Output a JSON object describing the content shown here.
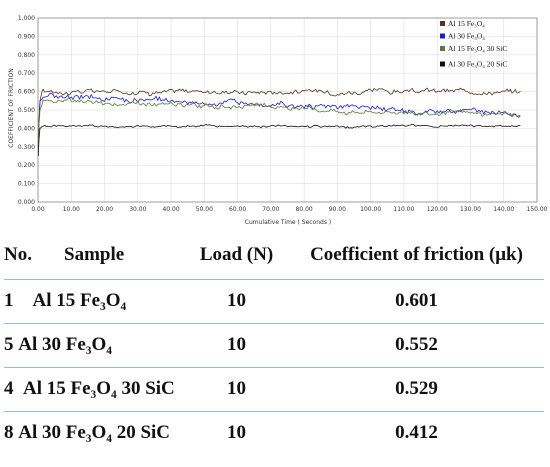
{
  "chart_data": {
    "type": "line",
    "xlabel": "Cumulative Time ( Seconds )",
    "ylabel": "COEFFICIENT OF FRICTION",
    "xlim": [
      0,
      150
    ],
    "ylim": [
      0,
      1
    ],
    "xticks": [
      "0.00",
      "10.00",
      "20.00",
      "30.00",
      "40.00",
      "50.00",
      "60.00",
      "70.00",
      "80.00",
      "90.00",
      "100.00",
      "110.00",
      "120.00",
      "130.00",
      "140.00",
      "150.00"
    ],
    "yticks": [
      "0.000",
      "0.100",
      "0.200",
      "0.300",
      "0.400",
      "0.500",
      "0.600",
      "0.700",
      "0.800",
      "0.900",
      "1.000"
    ],
    "grid": true,
    "legend_position": "top-right",
    "series": [
      {
        "name": "Al 15 Fe3O4",
        "color": "#5a3322",
        "run_in": [
          0.35,
          0.45,
          0.55,
          0.6
        ],
        "x_end": 145,
        "mean": 0.601,
        "noise": 0.014
      },
      {
        "name": "Al 30 Fe3O4",
        "color": "#1e1ec8",
        "run_in": [
          0.3,
          0.42,
          0.55,
          0.56
        ],
        "x_end": 145,
        "mean": 0.552,
        "trend_end": 0.48,
        "noise": 0.016
      },
      {
        "name": "Al 15 Fe3O4 30 SiC",
        "color": "#5d7a3a",
        "run_in": [
          0.3,
          0.42,
          0.5,
          0.53
        ],
        "x_end": 145,
        "mean": 0.529,
        "trend_end": 0.47,
        "noise": 0.013
      },
      {
        "name": "Al 30 Fe3O4 20 SiC",
        "color": "#111111",
        "run_in": [
          0.25,
          0.34,
          0.4,
          0.41
        ],
        "x_end": 145,
        "mean": 0.412,
        "noise": 0.006
      }
    ]
  },
  "legend": [
    {
      "label": "Al 15 Fe₃O₄",
      "color": "#5a3322"
    },
    {
      "label": "Al 30 Fe₃O₄",
      "color": "#1e1ec8"
    },
    {
      "label": "Al 15 Fe₃O₄ 30 SiC",
      "color": "#5d7a3a"
    },
    {
      "label": "Al 30 Fe₃O₄ 20 SiC",
      "color": "#111111"
    }
  ],
  "table": {
    "header": {
      "no": "No.",
      "sample": "Sample",
      "load": "Load (N)",
      "cof": "Coefficient of friction (μk)"
    },
    "rows": [
      {
        "no": "1",
        "sample": "Al 15 Fe₃O₄",
        "load": "10",
        "cof": "0.601"
      },
      {
        "no": "5",
        "sample": "Al 30 Fe₃O₄",
        "load": "10",
        "cof": "0.552"
      },
      {
        "no": "4",
        "sample": "Al 15 Fe₃O₄ 30 SiC",
        "load": "10",
        "cof": "0.529"
      },
      {
        "no": "8",
        "sample": "Al 30 Fe₃O₄ 20 SiC",
        "load": "10",
        "cof": "0.412"
      }
    ]
  }
}
